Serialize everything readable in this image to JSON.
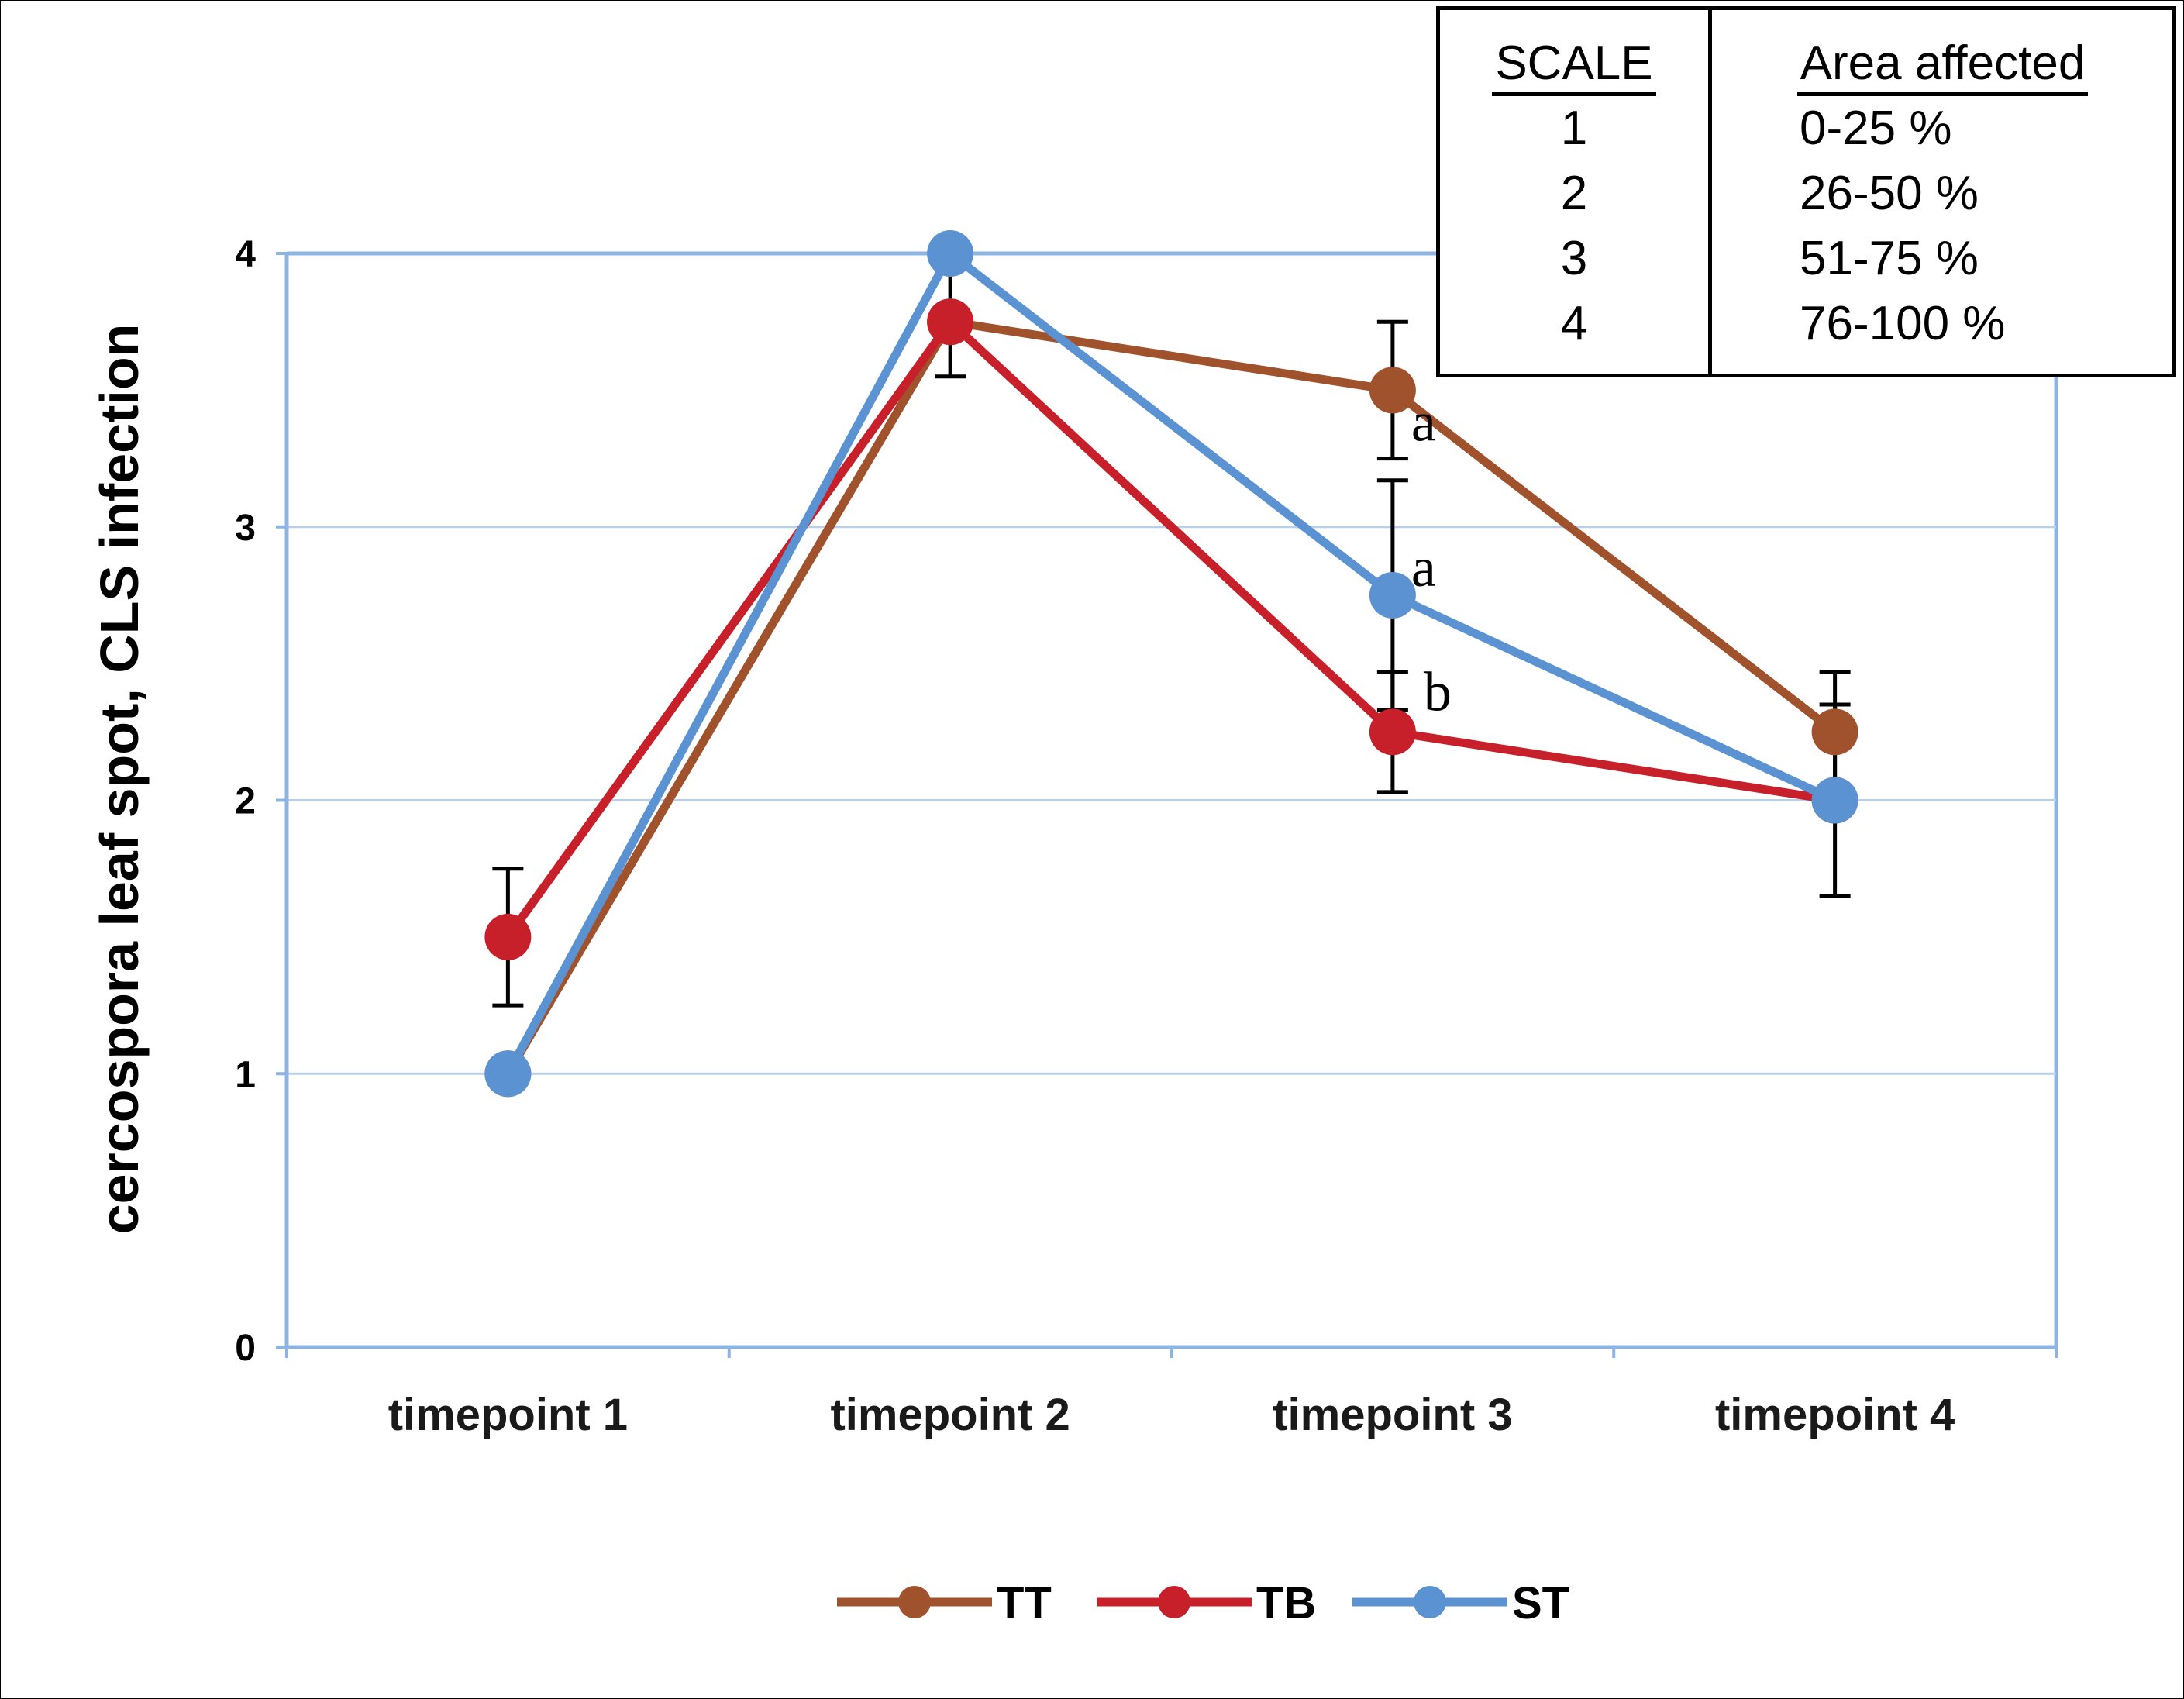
{
  "chart_data": {
    "type": "line",
    "ylabel": "cercospora leaf spot, CLS infection",
    "xlabel": "",
    "categories": [
      "timepoint 1",
      "timepoint 2",
      "timepoint 3",
      "timepoint 4"
    ],
    "yticks": [
      "0",
      "1",
      "2",
      "3",
      "4"
    ],
    "ylim": [
      0,
      4
    ],
    "grid": "horizontal",
    "legend_position": "bottom",
    "series": [
      {
        "name": "TT",
        "color": "#a0522d",
        "values": [
          1.0,
          3.75,
          3.5,
          2.25
        ],
        "error": [
          null,
          null,
          0.25,
          0.22
        ]
      },
      {
        "name": "TB",
        "color": "#c8202a",
        "values": [
          1.5,
          3.75,
          2.25,
          2.0
        ],
        "error": [
          0.25,
          0.2,
          0.22,
          null
        ]
      },
      {
        "name": "ST",
        "color": "#5b93d2",
        "values": [
          1.0,
          4.0,
          2.75,
          2.0
        ],
        "error": [
          null,
          null,
          0.42,
          0.35
        ]
      }
    ],
    "annotations": [
      {
        "text": "a",
        "category": "timepoint 3",
        "series": "TT"
      },
      {
        "text": "a",
        "category": "timepoint 3",
        "series": "ST"
      },
      {
        "text": "b",
        "category": "timepoint 3",
        "series": "TB"
      }
    ]
  },
  "scale_table": {
    "headers": [
      "SCALE",
      "Area affected"
    ],
    "rows": [
      [
        "1",
        "0-25 %"
      ],
      [
        "2",
        "26-50 %"
      ],
      [
        "3",
        "51-75 %"
      ],
      [
        "4",
        "76-100 %"
      ]
    ]
  }
}
